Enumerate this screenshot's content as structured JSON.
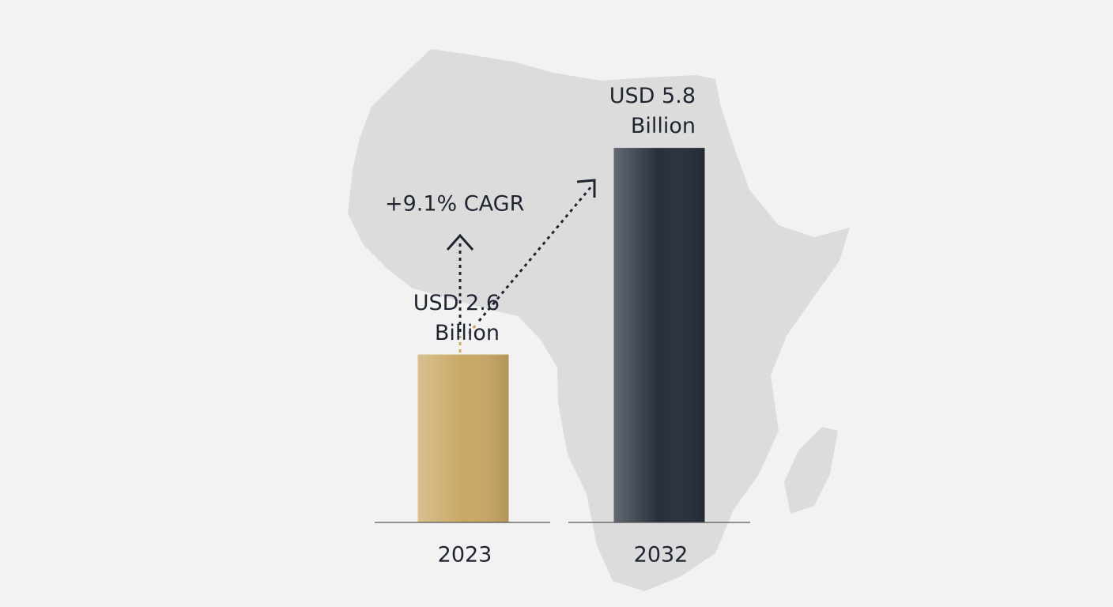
{
  "chart_data": {
    "type": "bar",
    "categories": [
      "2023",
      "2032"
    ],
    "values": [
      2.6,
      5.8
    ],
    "value_labels": [
      "USD 2.6 Billion",
      "USD 5.8 Billion"
    ],
    "colors": [
      "#c9a866",
      "#262f3b"
    ],
    "annotations": [
      "+9.1% CAGR"
    ]
  }
}
